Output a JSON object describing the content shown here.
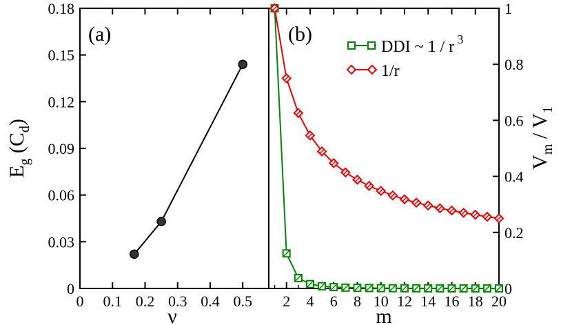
{
  "chart_data": [
    {
      "panel": "a",
      "type": "line",
      "panel_label": "(a)",
      "xlabel": "ν",
      "ylabel_main": "E",
      "ylabel_sub": "g",
      "ylabel_paren": " (C",
      "ylabel_sub2": "d",
      "ylabel_close": ")",
      "xlim": [
        0,
        0.58
      ],
      "ylim": [
        0,
        0.18
      ],
      "xticks": [
        0,
        0.1,
        0.2,
        0.3,
        0.4,
        0.5
      ],
      "xtick_labels": [
        "0",
        "0.1",
        "0.2",
        "0.3",
        "0.4",
        "0.5"
      ],
      "yticks": [
        0,
        0.03,
        0.06,
        0.09,
        0.12,
        0.15,
        0.18
      ],
      "ytick_labels": [
        "0",
        "0.03",
        "0.06",
        "0.09",
        "0.12",
        "0.15",
        "0.18"
      ],
      "color": "#000000",
      "series": [
        {
          "name": "E_g",
          "x": [
            0.1667,
            0.25,
            0.5
          ],
          "y": [
            0.022,
            0.043,
            0.144
          ]
        }
      ]
    },
    {
      "panel": "b",
      "type": "line",
      "panel_label": "(b)",
      "xlabel": "m",
      "ylabel_main": "V",
      "ylabel_sub": "m",
      "ylabel_slash": " / V",
      "ylabel_sub2": "1",
      "xlim": [
        0.5,
        20
      ],
      "ylim": [
        0,
        1
      ],
      "xticks": [
        2,
        4,
        6,
        8,
        10,
        12,
        14,
        16,
        18,
        20
      ],
      "xtick_labels": [
        "2",
        "4",
        "6",
        "8",
        "10",
        "12",
        "14",
        "16",
        "18",
        "20"
      ],
      "yticks": [
        0,
        0.2,
        0.4,
        0.6,
        0.8,
        1
      ],
      "ytick_labels": [
        "0",
        "0.2",
        "0.4",
        "0.6",
        "0.8",
        "1"
      ],
      "legend_position": "top-right",
      "series": [
        {
          "name": "DDI ~ 1 / r",
          "name_sup": "3",
          "color": "#008800",
          "marker": "square",
          "x": [
            1,
            2,
            3,
            4,
            5,
            6,
            7,
            8,
            9,
            10,
            11,
            12,
            13,
            14,
            15,
            16,
            17,
            18,
            19,
            20
          ],
          "y": [
            1,
            0.125,
            0.037,
            0.0156,
            0.008,
            0.0046,
            0.0029,
            0.002,
            0.0014,
            0.001,
            0.00075,
            0.00058,
            0.00046,
            0.00036,
            0.0003,
            0.00024,
            0.0002,
            0.00017,
            0.00015,
            0.000125
          ]
        },
        {
          "name": "1/r",
          "color": "#ee0000",
          "marker": "diamond",
          "x": [
            1,
            2,
            3,
            4,
            5,
            6,
            7,
            8,
            9,
            10,
            11,
            12,
            13,
            14,
            15,
            16,
            17,
            18,
            19,
            20
          ],
          "y": [
            1,
            0.75,
            0.626,
            0.546,
            0.489,
            0.447,
            0.414,
            0.388,
            0.366,
            0.348,
            0.332,
            0.318,
            0.306,
            0.296,
            0.286,
            0.278,
            0.27,
            0.263,
            0.256,
            0.25
          ]
        }
      ]
    }
  ]
}
